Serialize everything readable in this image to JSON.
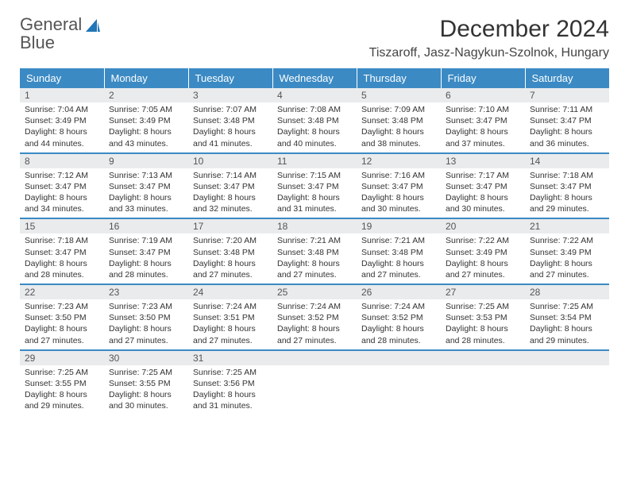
{
  "brand": {
    "part1": "General",
    "part2": "Blue"
  },
  "title": "December 2024",
  "location": "Tiszaroff, Jasz-Nagykun-Szolnok, Hungary",
  "accent_color": "#3b8ac4",
  "daynum_bg": "#e9ebed",
  "day_headers": [
    "Sunday",
    "Monday",
    "Tuesday",
    "Wednesday",
    "Thursday",
    "Friday",
    "Saturday"
  ],
  "weeks": [
    [
      {
        "n": "1",
        "sr": "7:04 AM",
        "ss": "3:49 PM",
        "dl": "8 hours and 44 minutes."
      },
      {
        "n": "2",
        "sr": "7:05 AM",
        "ss": "3:49 PM",
        "dl": "8 hours and 43 minutes."
      },
      {
        "n": "3",
        "sr": "7:07 AM",
        "ss": "3:48 PM",
        "dl": "8 hours and 41 minutes."
      },
      {
        "n": "4",
        "sr": "7:08 AM",
        "ss": "3:48 PM",
        "dl": "8 hours and 40 minutes."
      },
      {
        "n": "5",
        "sr": "7:09 AM",
        "ss": "3:48 PM",
        "dl": "8 hours and 38 minutes."
      },
      {
        "n": "6",
        "sr": "7:10 AM",
        "ss": "3:47 PM",
        "dl": "8 hours and 37 minutes."
      },
      {
        "n": "7",
        "sr": "7:11 AM",
        "ss": "3:47 PM",
        "dl": "8 hours and 36 minutes."
      }
    ],
    [
      {
        "n": "8",
        "sr": "7:12 AM",
        "ss": "3:47 PM",
        "dl": "8 hours and 34 minutes."
      },
      {
        "n": "9",
        "sr": "7:13 AM",
        "ss": "3:47 PM",
        "dl": "8 hours and 33 minutes."
      },
      {
        "n": "10",
        "sr": "7:14 AM",
        "ss": "3:47 PM",
        "dl": "8 hours and 32 minutes."
      },
      {
        "n": "11",
        "sr": "7:15 AM",
        "ss": "3:47 PM",
        "dl": "8 hours and 31 minutes."
      },
      {
        "n": "12",
        "sr": "7:16 AM",
        "ss": "3:47 PM",
        "dl": "8 hours and 30 minutes."
      },
      {
        "n": "13",
        "sr": "7:17 AM",
        "ss": "3:47 PM",
        "dl": "8 hours and 30 minutes."
      },
      {
        "n": "14",
        "sr": "7:18 AM",
        "ss": "3:47 PM",
        "dl": "8 hours and 29 minutes."
      }
    ],
    [
      {
        "n": "15",
        "sr": "7:18 AM",
        "ss": "3:47 PM",
        "dl": "8 hours and 28 minutes."
      },
      {
        "n": "16",
        "sr": "7:19 AM",
        "ss": "3:47 PM",
        "dl": "8 hours and 28 minutes."
      },
      {
        "n": "17",
        "sr": "7:20 AM",
        "ss": "3:48 PM",
        "dl": "8 hours and 27 minutes."
      },
      {
        "n": "18",
        "sr": "7:21 AM",
        "ss": "3:48 PM",
        "dl": "8 hours and 27 minutes."
      },
      {
        "n": "19",
        "sr": "7:21 AM",
        "ss": "3:48 PM",
        "dl": "8 hours and 27 minutes."
      },
      {
        "n": "20",
        "sr": "7:22 AM",
        "ss": "3:49 PM",
        "dl": "8 hours and 27 minutes."
      },
      {
        "n": "21",
        "sr": "7:22 AM",
        "ss": "3:49 PM",
        "dl": "8 hours and 27 minutes."
      }
    ],
    [
      {
        "n": "22",
        "sr": "7:23 AM",
        "ss": "3:50 PM",
        "dl": "8 hours and 27 minutes."
      },
      {
        "n": "23",
        "sr": "7:23 AM",
        "ss": "3:50 PM",
        "dl": "8 hours and 27 minutes."
      },
      {
        "n": "24",
        "sr": "7:24 AM",
        "ss": "3:51 PM",
        "dl": "8 hours and 27 minutes."
      },
      {
        "n": "25",
        "sr": "7:24 AM",
        "ss": "3:52 PM",
        "dl": "8 hours and 27 minutes."
      },
      {
        "n": "26",
        "sr": "7:24 AM",
        "ss": "3:52 PM",
        "dl": "8 hours and 28 minutes."
      },
      {
        "n": "27",
        "sr": "7:25 AM",
        "ss": "3:53 PM",
        "dl": "8 hours and 28 minutes."
      },
      {
        "n": "28",
        "sr": "7:25 AM",
        "ss": "3:54 PM",
        "dl": "8 hours and 29 minutes."
      }
    ],
    [
      {
        "n": "29",
        "sr": "7:25 AM",
        "ss": "3:55 PM",
        "dl": "8 hours and 29 minutes."
      },
      {
        "n": "30",
        "sr": "7:25 AM",
        "ss": "3:55 PM",
        "dl": "8 hours and 30 minutes."
      },
      {
        "n": "31",
        "sr": "7:25 AM",
        "ss": "3:56 PM",
        "dl": "8 hours and 31 minutes."
      },
      null,
      null,
      null,
      null
    ]
  ],
  "labels": {
    "sunrise": "Sunrise: ",
    "sunset": "Sunset: ",
    "daylight": "Daylight: "
  }
}
